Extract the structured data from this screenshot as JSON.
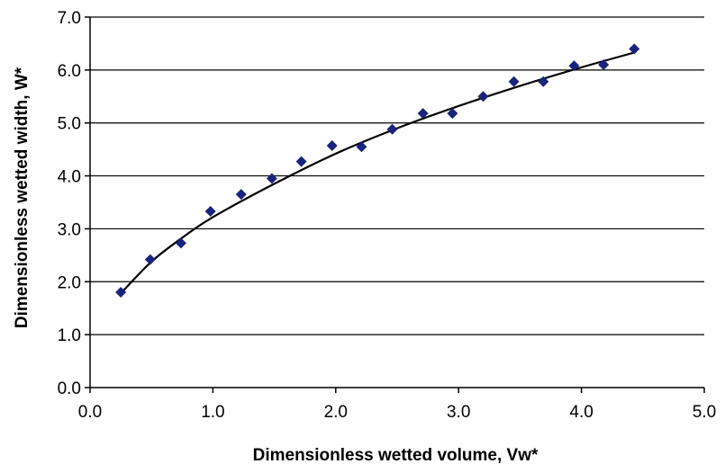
{
  "chart_data": {
    "type": "scatter",
    "xlabel": "Dimensionless wetted volume, Vw*",
    "ylabel": "Dimensionless wetted width, W*",
    "xlim": [
      0.0,
      5.0
    ],
    "ylim": [
      0.0,
      7.0
    ],
    "x_ticks": [
      "0.0",
      "1.0",
      "2.0",
      "3.0",
      "4.0",
      "5.0"
    ],
    "y_ticks": [
      "0.0",
      "1.0",
      "2.0",
      "3.0",
      "4.0",
      "5.0",
      "6.0",
      "7.0"
    ],
    "x_tick_values": [
      0,
      1,
      2,
      3,
      4,
      5
    ],
    "y_tick_values": [
      0,
      1,
      2,
      3,
      4,
      5,
      6,
      7
    ],
    "grid": "horizontal",
    "legend": "none",
    "series": [
      {
        "kind": "markers",
        "marker": "diamond",
        "color": "#1a237e",
        "points": [
          {
            "x": 0.25,
            "y": 1.8
          },
          {
            "x": 0.49,
            "y": 2.42
          },
          {
            "x": 0.74,
            "y": 2.73
          },
          {
            "x": 0.98,
            "y": 3.33
          },
          {
            "x": 1.23,
            "y": 3.65
          },
          {
            "x": 1.48,
            "y": 3.95
          },
          {
            "x": 1.72,
            "y": 4.27
          },
          {
            "x": 1.97,
            "y": 4.57
          },
          {
            "x": 2.21,
            "y": 4.55
          },
          {
            "x": 2.46,
            "y": 4.88
          },
          {
            "x": 2.71,
            "y": 5.18
          },
          {
            "x": 2.95,
            "y": 5.18
          },
          {
            "x": 3.2,
            "y": 5.5
          },
          {
            "x": 3.45,
            "y": 5.78
          },
          {
            "x": 3.69,
            "y": 5.78
          },
          {
            "x": 3.94,
            "y": 6.08
          },
          {
            "x": 4.18,
            "y": 6.1
          },
          {
            "x": 4.43,
            "y": 6.4
          }
        ]
      },
      {
        "kind": "trendline",
        "color": "#000000",
        "points": [
          {
            "x": 0.25,
            "y": 1.78
          },
          {
            "x": 0.5,
            "y": 2.38
          },
          {
            "x": 0.75,
            "y": 2.83
          },
          {
            "x": 1.0,
            "y": 3.22
          },
          {
            "x": 1.5,
            "y": 3.85
          },
          {
            "x": 2.0,
            "y": 4.42
          },
          {
            "x": 2.5,
            "y": 4.9
          },
          {
            "x": 3.0,
            "y": 5.32
          },
          {
            "x": 3.5,
            "y": 5.7
          },
          {
            "x": 4.0,
            "y": 6.05
          },
          {
            "x": 4.43,
            "y": 6.33
          }
        ]
      }
    ]
  },
  "colors": {
    "background": "#ffffff",
    "axis": "#000000",
    "grid": "#000000",
    "marker": "#1a237e",
    "trendline": "#000000"
  }
}
